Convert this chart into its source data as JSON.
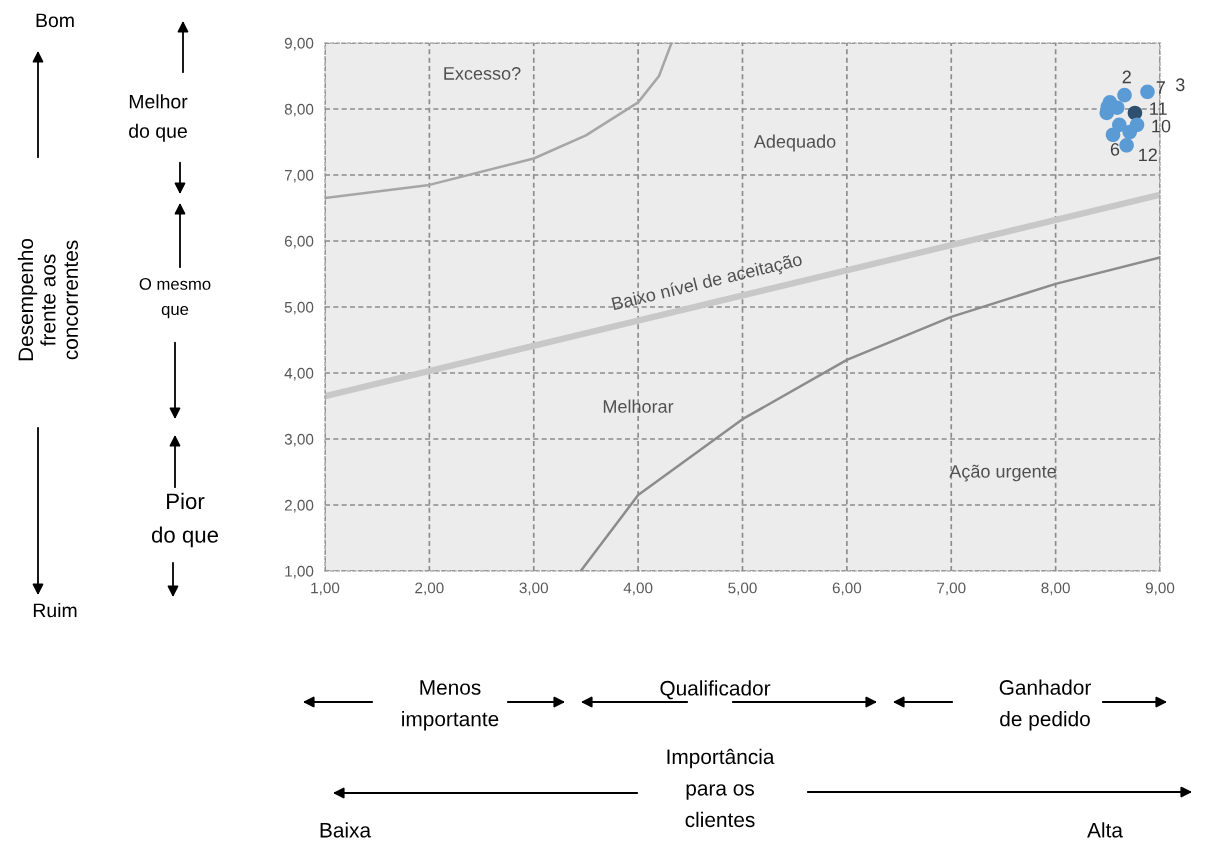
{
  "chart_data": {
    "type": "scatter",
    "xlim": [
      1,
      9
    ],
    "ylim": [
      1,
      9
    ],
    "xticks": [
      {
        "value": 1,
        "label": "1,00"
      },
      {
        "value": 2,
        "label": "2,00"
      },
      {
        "value": 3,
        "label": "3,00"
      },
      {
        "value": 4,
        "label": "4,00"
      },
      {
        "value": 5,
        "label": "5,00"
      },
      {
        "value": 6,
        "label": "6,00"
      },
      {
        "value": 7,
        "label": "7,00"
      },
      {
        "value": 8,
        "label": "8,00"
      },
      {
        "value": 9,
        "label": "9,00"
      }
    ],
    "yticks": [
      {
        "value": 1,
        "label": "1,00"
      },
      {
        "value": 2,
        "label": "2,00"
      },
      {
        "value": 3,
        "label": "3,00"
      },
      {
        "value": 4,
        "label": "4,00"
      },
      {
        "value": 5,
        "label": "5,00"
      },
      {
        "value": 6,
        "label": "6,00"
      },
      {
        "value": 7,
        "label": "7,00"
      },
      {
        "value": 8,
        "label": "8,00"
      },
      {
        "value": 9,
        "label": "9,00"
      }
    ],
    "grid": true,
    "legend": false,
    "marker": "circle",
    "series": [
      {
        "type": "line",
        "marker": "none",
        "color": "#a6a6a6",
        "x": [
          1,
          2,
          3,
          3.5,
          4,
          4.2,
          4.32
        ],
        "values": [
          6.65,
          6.85,
          7.25,
          7.6,
          8.1,
          8.5,
          9.0
        ]
      },
      {
        "type": "line",
        "marker": "none",
        "color": "#c8c8c8",
        "x": [
          1,
          9
        ],
        "values": [
          3.65,
          6.7
        ]
      },
      {
        "type": "line",
        "marker": "none",
        "color": "#8c8c8c",
        "x": [
          3.45,
          4,
          5,
          6,
          7,
          8,
          9
        ],
        "values": [
          1.0,
          2.15,
          3.3,
          4.2,
          4.85,
          5.35,
          5.75
        ]
      },
      {
        "color": "#5b9bd5",
        "x": [
          8.88,
          8.66,
          8.52,
          8.49,
          8.59,
          8.76,
          8.61,
          8.55,
          8.71,
          8.68,
          8.78,
          8.5
        ],
        "values": [
          8.26,
          8.21,
          8.1,
          7.94,
          8.02,
          7.94,
          7.76,
          7.61,
          7.65,
          7.45,
          7.76,
          8.03
        ],
        "colors": [
          "#5b9bd5",
          "#5b9bd5",
          "#5b9bd5",
          "#5b9bd5",
          "#5b9bd5",
          "#2f4f6f",
          "#5b9bd5",
          "#5b9bd5",
          "#5b9bd5",
          "#5b9bd5",
          "#5b9bd5",
          "#5b9bd5"
        ]
      }
    ],
    "annotations": [
      {
        "text": "7",
        "x": 8.88,
        "y": 8.26
      },
      {
        "text": "3",
        "x": 8.88,
        "y": 8.26
      },
      {
        "text": "2",
        "x": 8.66,
        "y": 8.21
      },
      {
        "text": "11",
        "x": 8.76,
        "y": 7.94
      },
      {
        "text": "10",
        "x": 8.78,
        "y": 7.76
      },
      {
        "text": "6",
        "x": 8.68,
        "y": 7.45
      },
      {
        "text": "12",
        "x": 8.68,
        "y": 7.45
      },
      "Excesso?",
      "Adequado",
      "Baixo nível de aceitação",
      "Melhorar",
      "Ação urgente",
      "Bom",
      "Ruim",
      "Melhor\ndo que",
      "O mesmo\nque",
      "Pior\ndo que",
      "Desempenho\nfrente aos\nconcorrentes",
      "Menos\nimportante",
      "Qualificador",
      "Ganhador\nde pedido",
      "Importância\npara os\nclientes",
      "Baixa",
      "Alta"
    ]
  }
}
